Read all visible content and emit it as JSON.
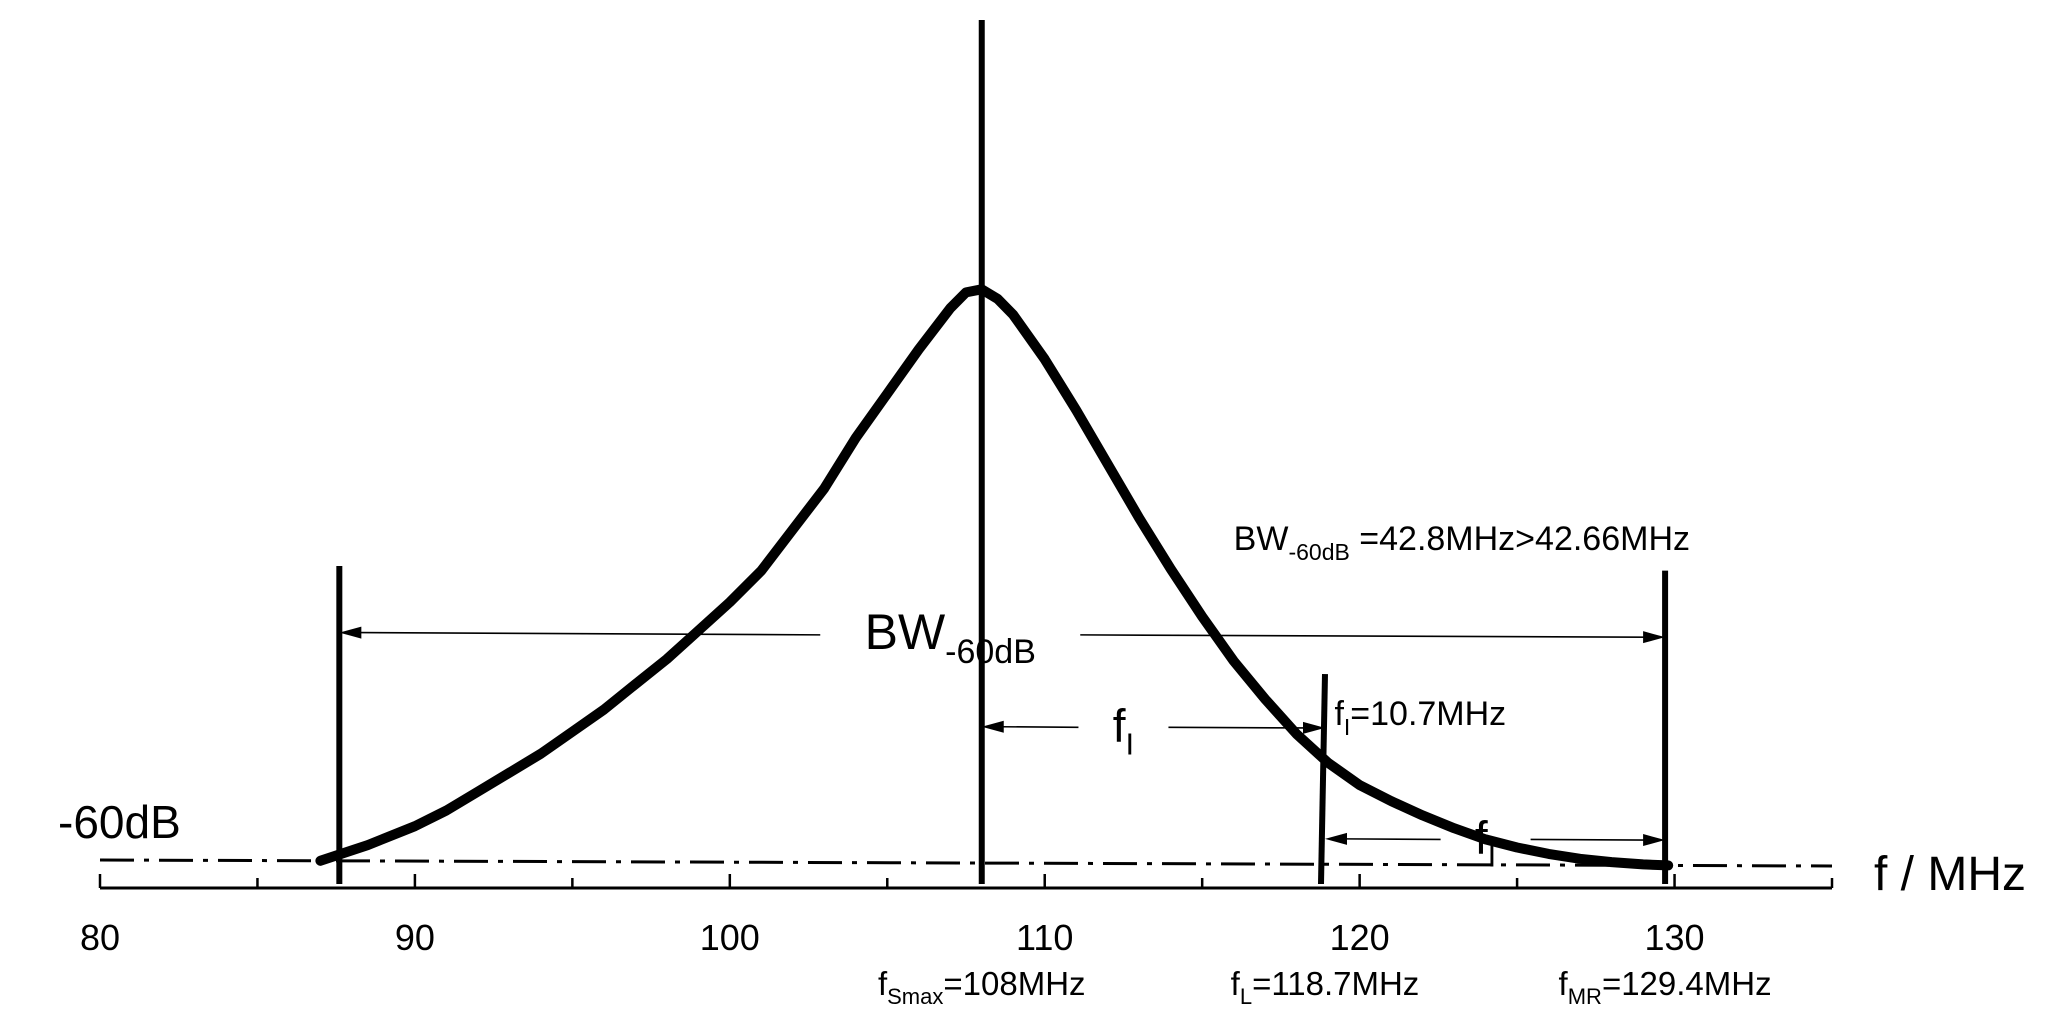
{
  "chart_data": {
    "type": "line",
    "xlabel": "f / MHz",
    "xlim": [
      80,
      135
    ],
    "x_ticks": [
      "80",
      "90",
      "100",
      "110",
      "120",
      "130"
    ],
    "reference_line": {
      "label": "-60dB"
    },
    "series": [
      {
        "x": [
          87.0,
          88.5,
          90,
          91,
          92,
          93,
          94,
          95,
          96,
          97,
          98,
          99,
          100,
          101,
          102,
          103,
          104,
          105,
          106,
          107,
          107.5,
          108,
          108.5,
          109,
          110,
          111,
          112,
          113,
          114,
          115,
          116,
          117,
          118,
          119,
          120,
          121,
          122,
          123,
          124,
          125,
          126,
          127,
          128,
          129,
          129.8
        ],
        "y": [
          0.0,
          0.05,
          0.11,
          0.16,
          0.22,
          0.28,
          0.34,
          0.41,
          0.48,
          0.56,
          0.64,
          0.73,
          0.82,
          0.92,
          1.05,
          1.18,
          1.34,
          1.48,
          1.62,
          1.75,
          1.8,
          1.81,
          1.78,
          1.73,
          1.59,
          1.43,
          1.26,
          1.09,
          0.93,
          0.78,
          0.64,
          0.52,
          0.41,
          0.32,
          0.25,
          0.2,
          0.155,
          0.115,
          0.08,
          0.055,
          0.035,
          0.02,
          0.01,
          0.003,
          0.0
        ]
      }
    ],
    "vertical_markers": [
      {
        "x": 87.6,
        "top": 0.93
      },
      {
        "x": 108.0,
        "top": 2.0
      },
      {
        "x": 118.9,
        "top": 0.6
      },
      {
        "x": 129.7,
        "top": 0.93
      }
    ],
    "dimensions": [
      {
        "from": 87.6,
        "to": 129.7,
        "level": 0.72,
        "label_main": "BW",
        "label_sub": "-60dB",
        "label_x": 107.0,
        "size": "large"
      },
      {
        "from": 108.0,
        "to": 118.9,
        "level": 0.43,
        "label_main": "f",
        "label_sub": "I",
        "label_x": 112.5,
        "size": "medium"
      },
      {
        "from": 118.9,
        "to": 129.7,
        "level": 0.08,
        "label_main": "f",
        "label_sub": "I",
        "label_x": 124.0,
        "size": "medium"
      }
    ],
    "annotations": [
      {
        "id": "bw-text",
        "main": "BW",
        "sub": "-60dB",
        "rest": " =42.8MHz>42.66MHz",
        "x": 116.0,
        "level": 0.99
      },
      {
        "id": "fi-text",
        "main": "f",
        "sub": "I",
        "rest": "=10.7MHz",
        "x": 119.2,
        "level": 0.44
      }
    ],
    "frequency_labels": [
      {
        "main": "f",
        "sub": "Smax",
        "rest": "=108MHz",
        "x": 108.0
      },
      {
        "main": "f",
        "sub": "L",
        "rest": "=118.7MHz",
        "x": 118.9
      },
      {
        "main": "f",
        "sub": "MR",
        "rest": "=129.4MHz",
        "x": 129.7
      }
    ]
  }
}
